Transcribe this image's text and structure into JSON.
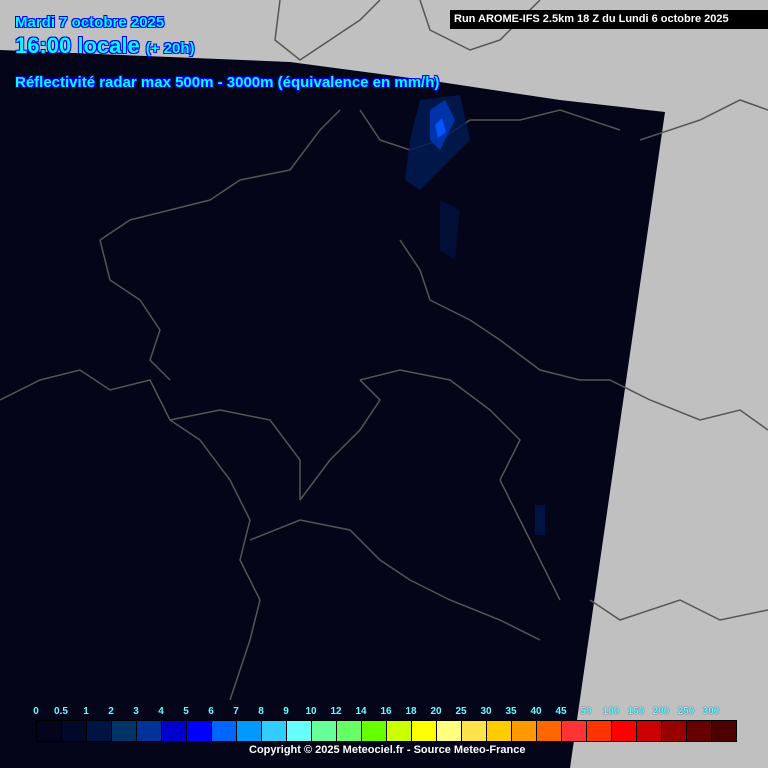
{
  "header": {
    "date": "Mardi 7 octobre 2025",
    "time": "16:00 locale",
    "offset": "(+ 20h)",
    "product": "Réflectivité radar max 500m - 3000m (équivalence en mm/h)"
  },
  "run_info": "Run AROME-IFS 2.5km 18 Z du Lundi 6 octobre 2025",
  "legend": {
    "labels": [
      "0",
      "0.5",
      "1",
      "2",
      "3",
      "4",
      "5",
      "6",
      "7",
      "8",
      "9",
      "10",
      "12",
      "14",
      "16",
      "18",
      "20",
      "25",
      "30",
      "35",
      "40",
      "45",
      "50",
      "100",
      "150",
      "200",
      "250",
      "300"
    ],
    "colors": [
      "#04041a",
      "#000a28",
      "#001443",
      "#003366",
      "#003399",
      "#0000cc",
      "#0000ff",
      "#0066ff",
      "#0099ff",
      "#33ccff",
      "#66ffff",
      "#66ff99",
      "#66ff66",
      "#66ff00",
      "#ccff00",
      "#ffff00",
      "#ffff80",
      "#ffe34d",
      "#ffcc00",
      "#ff9900",
      "#ff6600",
      "#ff3333",
      "#ff3300",
      "#ff0000",
      "#cc0000",
      "#990000",
      "#660000",
      "#4d0000"
    ]
  },
  "copyright": "Copyright © 2025 Meteociel.fr - Source Meteo-France",
  "colors": {
    "background": "#c0c0c0",
    "domain": "#05051a",
    "borders": "#555555"
  }
}
